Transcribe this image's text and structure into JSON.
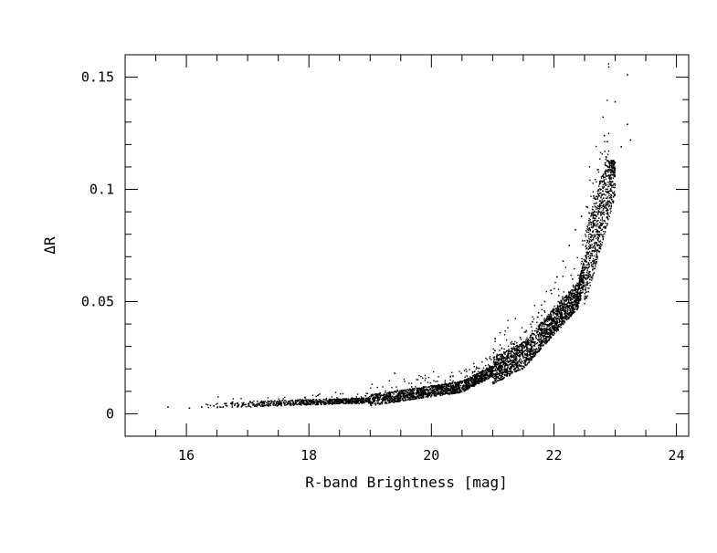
{
  "chart_data": {
    "type": "scatter",
    "title": "",
    "xlabel": "R-band Brightness [mag]",
    "ylabel": "ΔR",
    "xlim": [
      15,
      24.2
    ],
    "ylim": [
      -0.01,
      0.16
    ],
    "x_ticks": [
      16,
      18,
      20,
      22,
      24
    ],
    "x_tick_labels": [
      "16",
      "18",
      "20",
      "22",
      "24"
    ],
    "y_ticks": [
      0,
      0.05,
      0.1,
      0.15
    ],
    "y_tick_labels": [
      "0",
      "0.05",
      "0.1",
      "0.15"
    ],
    "x_minor_step": 0.5,
    "y_minor_step": 0.01,
    "grid": false,
    "legend": "none",
    "marker_color": "#000000",
    "points": [
      [
        15.7,
        0.003
      ],
      [
        16.05,
        0.0025
      ],
      [
        16.25,
        0.003
      ],
      [
        16.35,
        0.004
      ],
      [
        16.45,
        0.0035
      ],
      [
        16.55,
        0.003
      ],
      [
        16.65,
        0.0045
      ],
      [
        16.75,
        0.003
      ],
      [
        16.85,
        0.0035
      ],
      [
        16.95,
        0.004
      ],
      [
        17.05,
        0.003
      ],
      [
        17.15,
        0.0042
      ],
      [
        17.25,
        0.0035
      ],
      [
        17.35,
        0.0038
      ],
      [
        17.45,
        0.004
      ],
      [
        17.55,
        0.0036
      ],
      [
        17.65,
        0.0042
      ],
      [
        17.75,
        0.0038
      ],
      [
        17.85,
        0.0045
      ],
      [
        17.95,
        0.004
      ],
      [
        18.05,
        0.0048
      ],
      [
        18.15,
        0.0042
      ],
      [
        18.25,
        0.005
      ],
      [
        18.35,
        0.0046
      ],
      [
        18.45,
        0.0052
      ],
      [
        18.55,
        0.005
      ],
      [
        18.65,
        0.0055
      ],
      [
        18.75,
        0.0052
      ],
      [
        18.85,
        0.006
      ],
      [
        18.95,
        0.0058
      ],
      [
        19.05,
        0.0065
      ],
      [
        19.15,
        0.0062
      ],
      [
        19.25,
        0.007
      ],
      [
        19.35,
        0.0068
      ],
      [
        19.4,
        0.018
      ],
      [
        19.45,
        0.0075
      ],
      [
        19.55,
        0.0078
      ],
      [
        19.65,
        0.008
      ],
      [
        19.75,
        0.0085
      ],
      [
        19.85,
        0.009
      ],
      [
        19.95,
        0.0095
      ],
      [
        20.05,
        0.01
      ],
      [
        20.15,
        0.011
      ],
      [
        20.25,
        0.0115
      ],
      [
        20.35,
        0.0125
      ],
      [
        20.45,
        0.013
      ],
      [
        20.55,
        0.0145
      ],
      [
        20.65,
        0.016
      ],
      [
        20.75,
        0.017
      ],
      [
        20.85,
        0.019
      ],
      [
        20.95,
        0.021
      ],
      [
        21.05,
        0.023
      ],
      [
        21.15,
        0.025
      ],
      [
        21.25,
        0.028
      ],
      [
        21.35,
        0.031
      ],
      [
        21.45,
        0.034
      ],
      [
        21.55,
        0.037
      ],
      [
        21.65,
        0.041
      ],
      [
        21.75,
        0.045
      ],
      [
        21.85,
        0.05
      ],
      [
        21.95,
        0.055
      ],
      [
        22.05,
        0.061
      ],
      [
        22.15,
        0.068
      ],
      [
        22.25,
        0.075
      ],
      [
        22.35,
        0.082
      ],
      [
        22.45,
        0.088
      ],
      [
        22.55,
        0.092
      ],
      [
        22.65,
        0.097
      ],
      [
        22.75,
        0.103
      ],
      [
        22.85,
        0.108
      ],
      [
        22.95,
        0.112
      ],
      [
        23.0,
        0.139
      ],
      [
        23.2,
        0.151
      ],
      [
        23.2,
        0.129
      ],
      [
        23.25,
        0.122
      ],
      [
        23.1,
        0.119
      ]
    ],
    "density_note": ""
  }
}
